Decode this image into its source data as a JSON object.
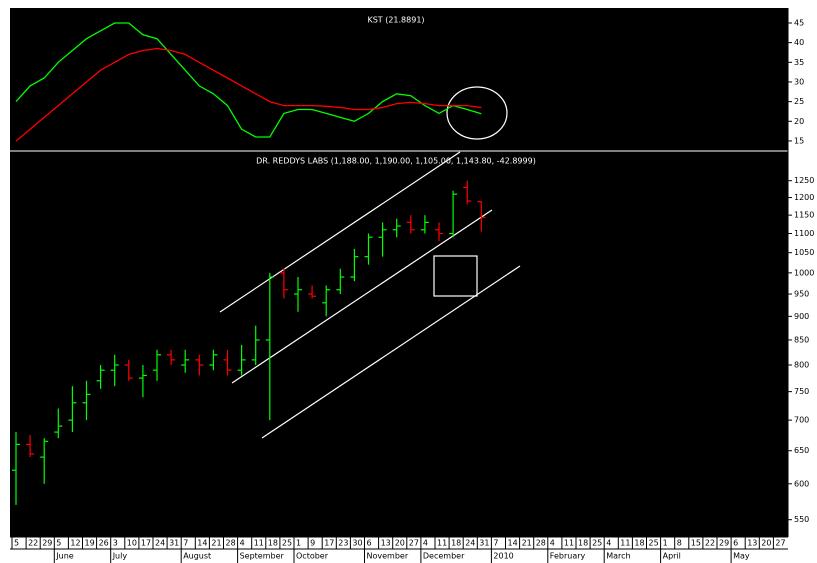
{
  "x_axis": {
    "weeks": [
      "5",
      "22",
      "29",
      "5",
      "12",
      "19",
      "26",
      "3",
      "10",
      "17",
      "24",
      "31",
      "7",
      "14",
      "21",
      "28",
      "4",
      "11",
      "18",
      "25",
      "1",
      "9",
      "17",
      "23",
      "30",
      "6",
      "13",
      "20",
      "27",
      "4",
      "11",
      "18",
      "24",
      "31",
      "7",
      "14",
      "21",
      "28",
      "4",
      "11",
      "18",
      "25",
      "4",
      "11",
      "18",
      "25",
      "1",
      "8",
      "15",
      "22",
      "29",
      "6",
      "13",
      "20",
      "27"
    ],
    "months": [
      "June",
      "July",
      "August",
      "September",
      "October",
      "November",
      "December",
      "2010",
      "February",
      "March",
      "April",
      "May"
    ]
  },
  "chart_data": [
    {
      "type": "line",
      "title": "KST (21.8891)",
      "ylim": [
        12.7,
        48.3
      ],
      "yticks": [
        15,
        20,
        25,
        30,
        35,
        40,
        45
      ],
      "series": [
        {
          "color": "#00ff00",
          "values": [
            25,
            29,
            31,
            35,
            38,
            41,
            43,
            45,
            45,
            42,
            41,
            37,
            33,
            29,
            27,
            24,
            18,
            16,
            16,
            22,
            23,
            23,
            22,
            21,
            20,
            22,
            25,
            27,
            26.5,
            24,
            22,
            24,
            23,
            21.9
          ]
        },
        {
          "color": "#ff0000",
          "values": [
            15,
            18,
            21,
            24,
            27,
            30,
            33,
            35,
            37,
            38,
            38.5,
            38,
            37,
            35,
            33,
            31,
            29,
            27,
            25,
            24,
            24,
            24,
            23.8,
            23.5,
            23,
            23,
            23.5,
            24.5,
            24.8,
            24.5,
            24,
            24,
            24,
            23.5
          ]
        }
      ]
    },
    {
      "type": "ohlc",
      "title": "DR. REDDYS LABS (1,188.00, 1,190.00, 1,105.00, 1,143.80, -42.8999)",
      "log_scale": true,
      "ylim": [
        530,
        1340
      ],
      "yticks": [
        550,
        600,
        650,
        700,
        750,
        800,
        850,
        900,
        950,
        1000,
        1050,
        1100,
        1150,
        1200,
        1250
      ],
      "up_color": "#00ff00",
      "down_color": "#ff0000",
      "open": [
        620,
        660,
        640,
        680,
        700,
        730,
        770,
        790,
        800,
        775,
        790,
        820,
        800,
        810,
        800,
        810,
        790,
        810,
        850,
        1000,
        950,
        950,
        930,
        960,
        990,
        1040,
        1090,
        1110,
        1130,
        1110,
        1110,
        1100,
        1230,
        1188
      ],
      "high": [
        680,
        675,
        670,
        720,
        760,
        770,
        800,
        820,
        810,
        800,
        830,
        830,
        830,
        820,
        830,
        830,
        840,
        880,
        1000,
        1010,
        990,
        970,
        970,
        1010,
        1060,
        1100,
        1130,
        1140,
        1150,
        1150,
        1130,
        1220,
        1250,
        1190
      ],
      "low": [
        570,
        640,
        600,
        670,
        680,
        700,
        755,
        760,
        770,
        740,
        770,
        800,
        785,
        780,
        790,
        780,
        780,
        800,
        700,
        940,
        910,
        940,
        900,
        950,
        980,
        1020,
        1040,
        1090,
        1100,
        1100,
        1080,
        1090,
        1180,
        1105
      ],
      "close": [
        660,
        645,
        665,
        690,
        730,
        745,
        790,
        800,
        775,
        780,
        820,
        810,
        810,
        800,
        820,
        790,
        810,
        850,
        990,
        960,
        960,
        945,
        960,
        990,
        1040,
        1090,
        1110,
        1120,
        1110,
        1130,
        1100,
        1210,
        1190,
        1143.8
      ]
    }
  ]
}
